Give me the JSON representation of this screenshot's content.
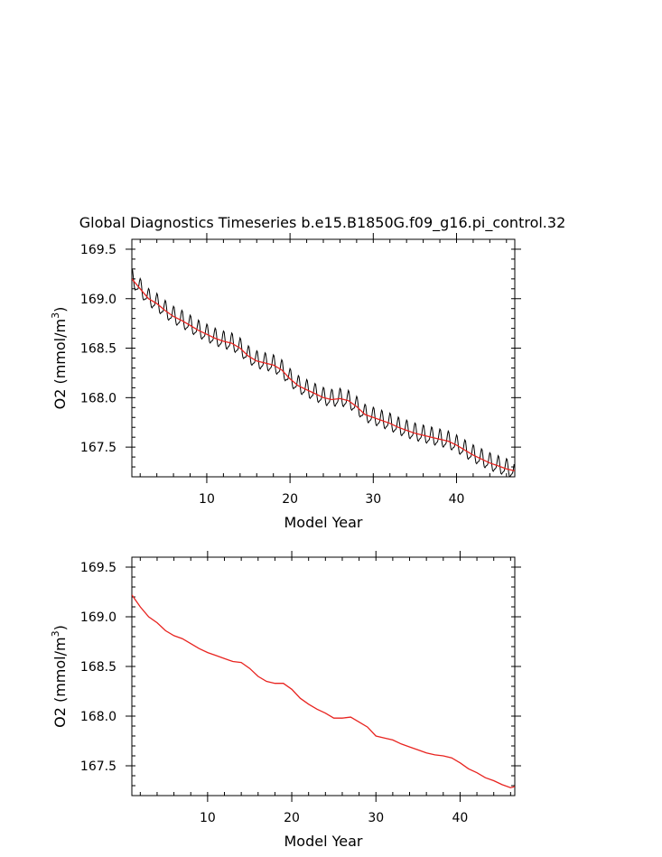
{
  "figure": {
    "title": "Global Diagnostics Timeseries b.e15.B1850G.f09_g16.pi_control.32"
  },
  "colors": {
    "monthly": "#000000",
    "annual": "#e8231f",
    "axes": "#000000",
    "background": "#ffffff"
  },
  "chart_data": [
    {
      "type": "line",
      "title": "Global Diagnostics Timeseries b.e15.B1850G.f09_g16.pi_control.32",
      "xlabel": "Model Year",
      "ylabel": "O2 (mmol/m3)",
      "ylabel_base": "O2 (mmol/m",
      "ylabel_sup": "3",
      "ylabel_end": ")",
      "xlim": [
        1,
        47
      ],
      "ylim": [
        167.2,
        169.6
      ],
      "xticks": [
        10,
        20,
        30,
        40
      ],
      "yticks": [
        167.5,
        168.0,
        168.5,
        169.0,
        169.5
      ],
      "grid": false,
      "legend": "none",
      "series": [
        {
          "kind": "monthly",
          "seasonal_amplitude": 0.08,
          "x": [
            1,
            2,
            3,
            4,
            5,
            6,
            7,
            8,
            9,
            10,
            11,
            12,
            13,
            14,
            15,
            16,
            17,
            18,
            19,
            20,
            21,
            22,
            23,
            24,
            25,
            26,
            27,
            28,
            29,
            30,
            31,
            32,
            33,
            34,
            35,
            36,
            37,
            38,
            39,
            40,
            41,
            42,
            43,
            44,
            45,
            46,
            47
          ],
          "values": [
            169.2,
            169.1,
            169.0,
            168.95,
            168.88,
            168.82,
            168.78,
            168.73,
            168.68,
            168.64,
            168.6,
            168.57,
            168.55,
            168.5,
            168.42,
            168.37,
            168.35,
            168.33,
            168.28,
            168.19,
            168.12,
            168.08,
            168.04,
            168.0,
            167.98,
            167.99,
            167.97,
            167.91,
            167.83,
            167.8,
            167.77,
            167.74,
            167.7,
            167.67,
            167.64,
            167.62,
            167.6,
            167.58,
            167.56,
            167.52,
            167.47,
            167.42,
            167.38,
            167.34,
            167.31,
            167.28,
            167.26
          ]
        },
        {
          "kind": "annual",
          "x": [
            1,
            2,
            3,
            4,
            5,
            6,
            7,
            8,
            9,
            10,
            11,
            12,
            13,
            14,
            15,
            16,
            17,
            18,
            19,
            20,
            21,
            22,
            23,
            24,
            25,
            26,
            27,
            28,
            29,
            30,
            31,
            32,
            33,
            34,
            35,
            36,
            37,
            38,
            39,
            40,
            41,
            42,
            43,
            44,
            45,
            46,
            47
          ],
          "values": [
            169.2,
            169.1,
            169.0,
            168.95,
            168.88,
            168.82,
            168.78,
            168.73,
            168.68,
            168.64,
            168.6,
            168.57,
            168.55,
            168.5,
            168.42,
            168.37,
            168.35,
            168.33,
            168.28,
            168.19,
            168.12,
            168.08,
            168.04,
            168.0,
            167.98,
            167.99,
            167.97,
            167.91,
            167.83,
            167.8,
            167.77,
            167.74,
            167.7,
            167.67,
            167.64,
            167.62,
            167.6,
            167.58,
            167.56,
            167.52,
            167.47,
            167.42,
            167.38,
            167.34,
            167.31,
            167.28,
            167.26
          ]
        }
      ]
    },
    {
      "type": "line",
      "title": "",
      "xlabel": "Model Year",
      "ylabel": "O2 (mmol/m3)",
      "ylabel_base": "O2 (mmol/m",
      "ylabel_sup": "3",
      "ylabel_end": ")",
      "xlim": [
        1,
        46.5
      ],
      "ylim": [
        167.2,
        169.6
      ],
      "xticks": [
        10,
        20,
        30,
        40
      ],
      "yticks": [
        167.5,
        168.0,
        168.5,
        169.0,
        169.5
      ],
      "grid": false,
      "legend": "none",
      "series": [
        {
          "kind": "annual",
          "x": [
            1,
            2,
            3,
            4,
            5,
            6,
            7,
            8,
            9,
            10,
            11,
            12,
            13,
            14,
            15,
            16,
            17,
            18,
            19,
            20,
            21,
            22,
            23,
            24,
            25,
            26,
            27,
            28,
            29,
            30,
            31,
            32,
            33,
            34,
            35,
            36,
            37,
            38,
            39,
            40,
            41,
            42,
            43,
            44,
            45,
            46,
            46.5
          ],
          "values": [
            169.22,
            169.1,
            169.0,
            168.94,
            168.86,
            168.81,
            168.78,
            168.73,
            168.68,
            168.64,
            168.61,
            168.58,
            168.55,
            168.54,
            168.48,
            168.4,
            168.35,
            168.33,
            168.33,
            168.27,
            168.18,
            168.12,
            168.07,
            168.03,
            167.98,
            167.98,
            167.99,
            167.94,
            167.89,
            167.8,
            167.78,
            167.76,
            167.72,
            167.69,
            167.66,
            167.63,
            167.61,
            167.6,
            167.58,
            167.53,
            167.47,
            167.43,
            167.38,
            167.35,
            167.31,
            167.28,
            167.29
          ]
        }
      ]
    }
  ]
}
